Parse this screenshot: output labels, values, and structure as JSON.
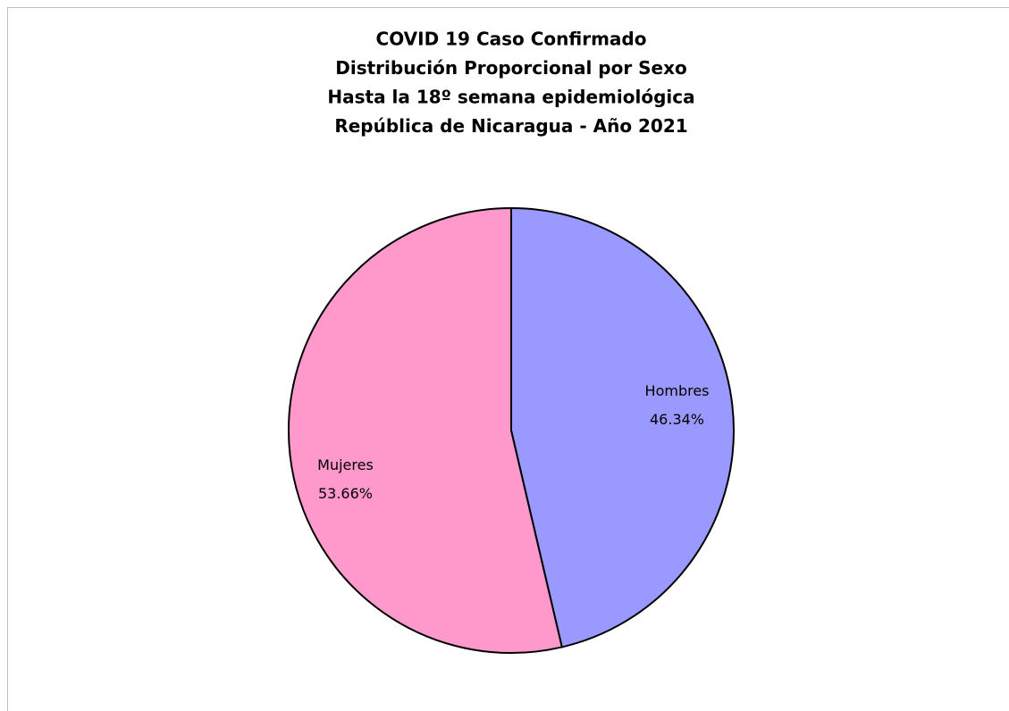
{
  "chart_data": {
    "type": "pie",
    "title": [
      "COVID 19 Caso Confirmado",
      "Distribución Proporcional por Sexo",
      "Hasta la 18º semana epidemiológica",
      "República de Nicaragua - Año 2021"
    ],
    "categories": [
      "Hombres",
      "Mujeres"
    ],
    "values": [
      46.34,
      53.66
    ],
    "value_labels": [
      "46.34%",
      "53.66%"
    ],
    "colors": [
      "#9999ff",
      "#ff99cc"
    ]
  }
}
